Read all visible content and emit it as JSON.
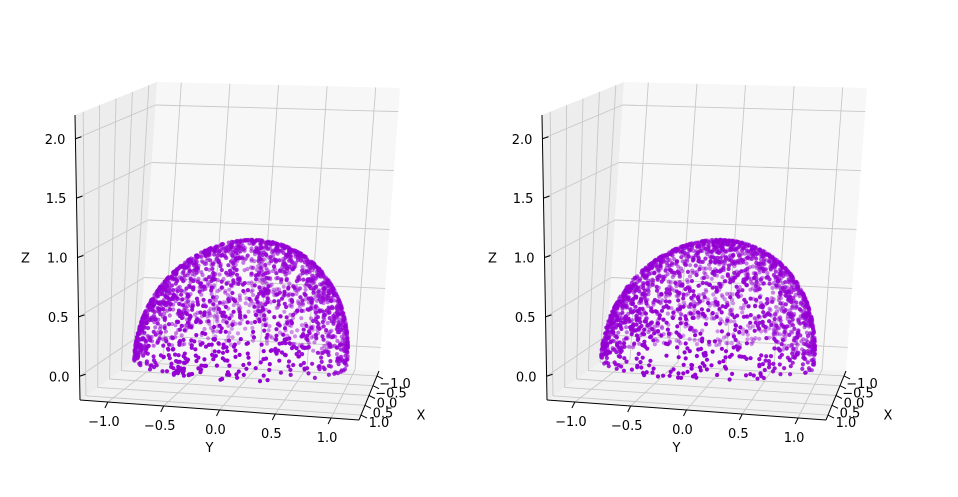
{
  "chart_data": [
    {
      "type": "scatter",
      "projection": "3d",
      "title": "",
      "xlabel": "X",
      "ylabel": "Y",
      "zlabel": "Z",
      "x_ticks": [
        "−1.0",
        "−0.5",
        "0.0",
        "0.5",
        "1.0"
      ],
      "y_ticks": [
        "−1.0",
        "−0.5",
        "0.0",
        "0.5",
        "1.0"
      ],
      "z_ticks": [
        "0.0",
        "0.5",
        "1.0",
        "1.5",
        "2.0"
      ],
      "xlim": [
        -1.25,
        1.25
      ],
      "ylim": [
        -1.25,
        1.25
      ],
      "zlim": [
        -0.2,
        2.2
      ],
      "grid": true,
      "point_color": "#9400d3",
      "shape": "upper hemisphere of radius 1 centered at origin (points on surface, z ≥ 0)",
      "radius": 1.0,
      "approx_point_count": 2000
    },
    {
      "type": "scatter",
      "projection": "3d",
      "title": "",
      "xlabel": "X",
      "ylabel": "Y",
      "zlabel": "Z",
      "x_ticks": [
        "−1.0",
        "−0.5",
        "0.0",
        "0.5",
        "1.0"
      ],
      "y_ticks": [
        "−1.0",
        "−0.5",
        "0.0",
        "0.5",
        "1.0"
      ],
      "z_ticks": [
        "0.0",
        "0.5",
        "1.0",
        "1.5",
        "2.0"
      ],
      "xlim": [
        -1.25,
        1.25
      ],
      "ylim": [
        -1.25,
        1.25
      ],
      "zlim": [
        -0.2,
        2.2
      ],
      "grid": true,
      "point_color": "#9400d3",
      "shape": "upper hemisphere of radius 1 centered at origin (points on surface, z ≥ 0)",
      "radius": 1.0,
      "approx_point_count": 2000
    }
  ]
}
